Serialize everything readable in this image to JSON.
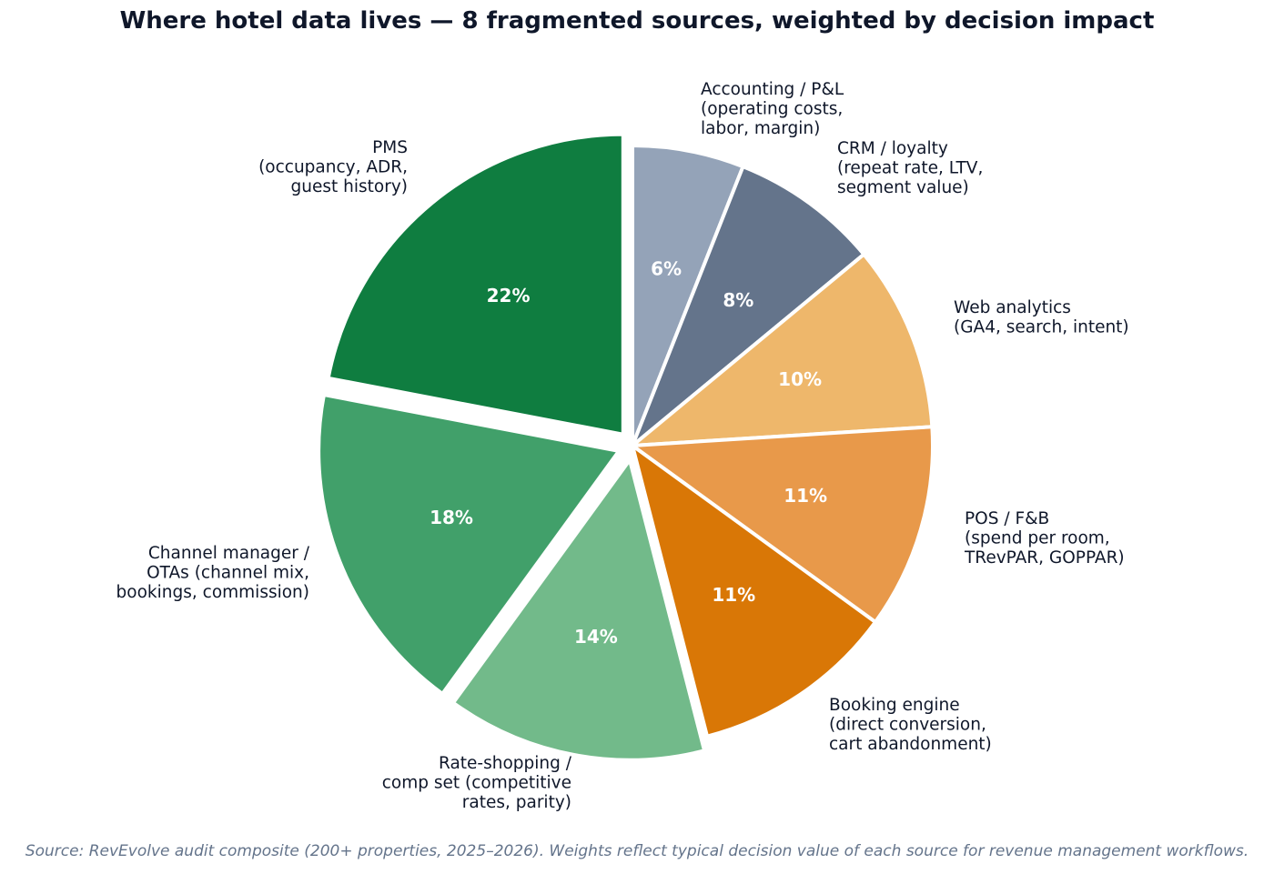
{
  "chart_data": {
    "type": "pie",
    "title": "Where hotel data lives — 8 fragmented sources, weighted by decision impact",
    "start": "12 o'clock",
    "direction": "clockwise",
    "slices": [
      {
        "label": [
          "Accounting / P&L",
          "(operating costs,",
          "labor, margin)"
        ],
        "value": 6,
        "display": "6%",
        "color": "#94a3b8",
        "exploded": false
      },
      {
        "label": [
          "CRM / loyalty",
          "(repeat rate, LTV,",
          "segment value)"
        ],
        "value": 8,
        "display": "8%",
        "color": "#64748b",
        "exploded": false
      },
      {
        "label": [
          "Web analytics",
          "(GA4, search, intent)"
        ],
        "value": 10,
        "display": "10%",
        "color": "#eeb76b",
        "exploded": false
      },
      {
        "label": [
          "POS / F&B",
          "(spend per room,",
          "TRevPAR, GOPPAR)"
        ],
        "value": 11,
        "display": "11%",
        "color": "#e8994a",
        "exploded": false
      },
      {
        "label": [
          "Booking engine",
          "(direct conversion,",
          "cart abandonment)"
        ],
        "value": 11,
        "display": "11%",
        "color": "#d97706",
        "exploded": false
      },
      {
        "label": [
          "Rate-shopping /",
          "comp set (competitive",
          "rates, parity)"
        ],
        "value": 14,
        "display": "14%",
        "color": "#72ba8a",
        "exploded": true
      },
      {
        "label": [
          "Channel manager /",
          "OTAs (channel mix,",
          "bookings, commission)"
        ],
        "value": 18,
        "display": "18%",
        "color": "#41a06a",
        "exploded": true
      },
      {
        "label": [
          "PMS",
          "(occupancy, ADR,",
          "guest history)"
        ],
        "value": 22,
        "display": "22%",
        "color": "#0f7d40",
        "exploded": true
      }
    ]
  },
  "footer": {
    "source": "Source: RevEvolve audit composite (200+ properties, 2025–2026). Weights reflect typical decision value of each source for revenue management workflows."
  }
}
